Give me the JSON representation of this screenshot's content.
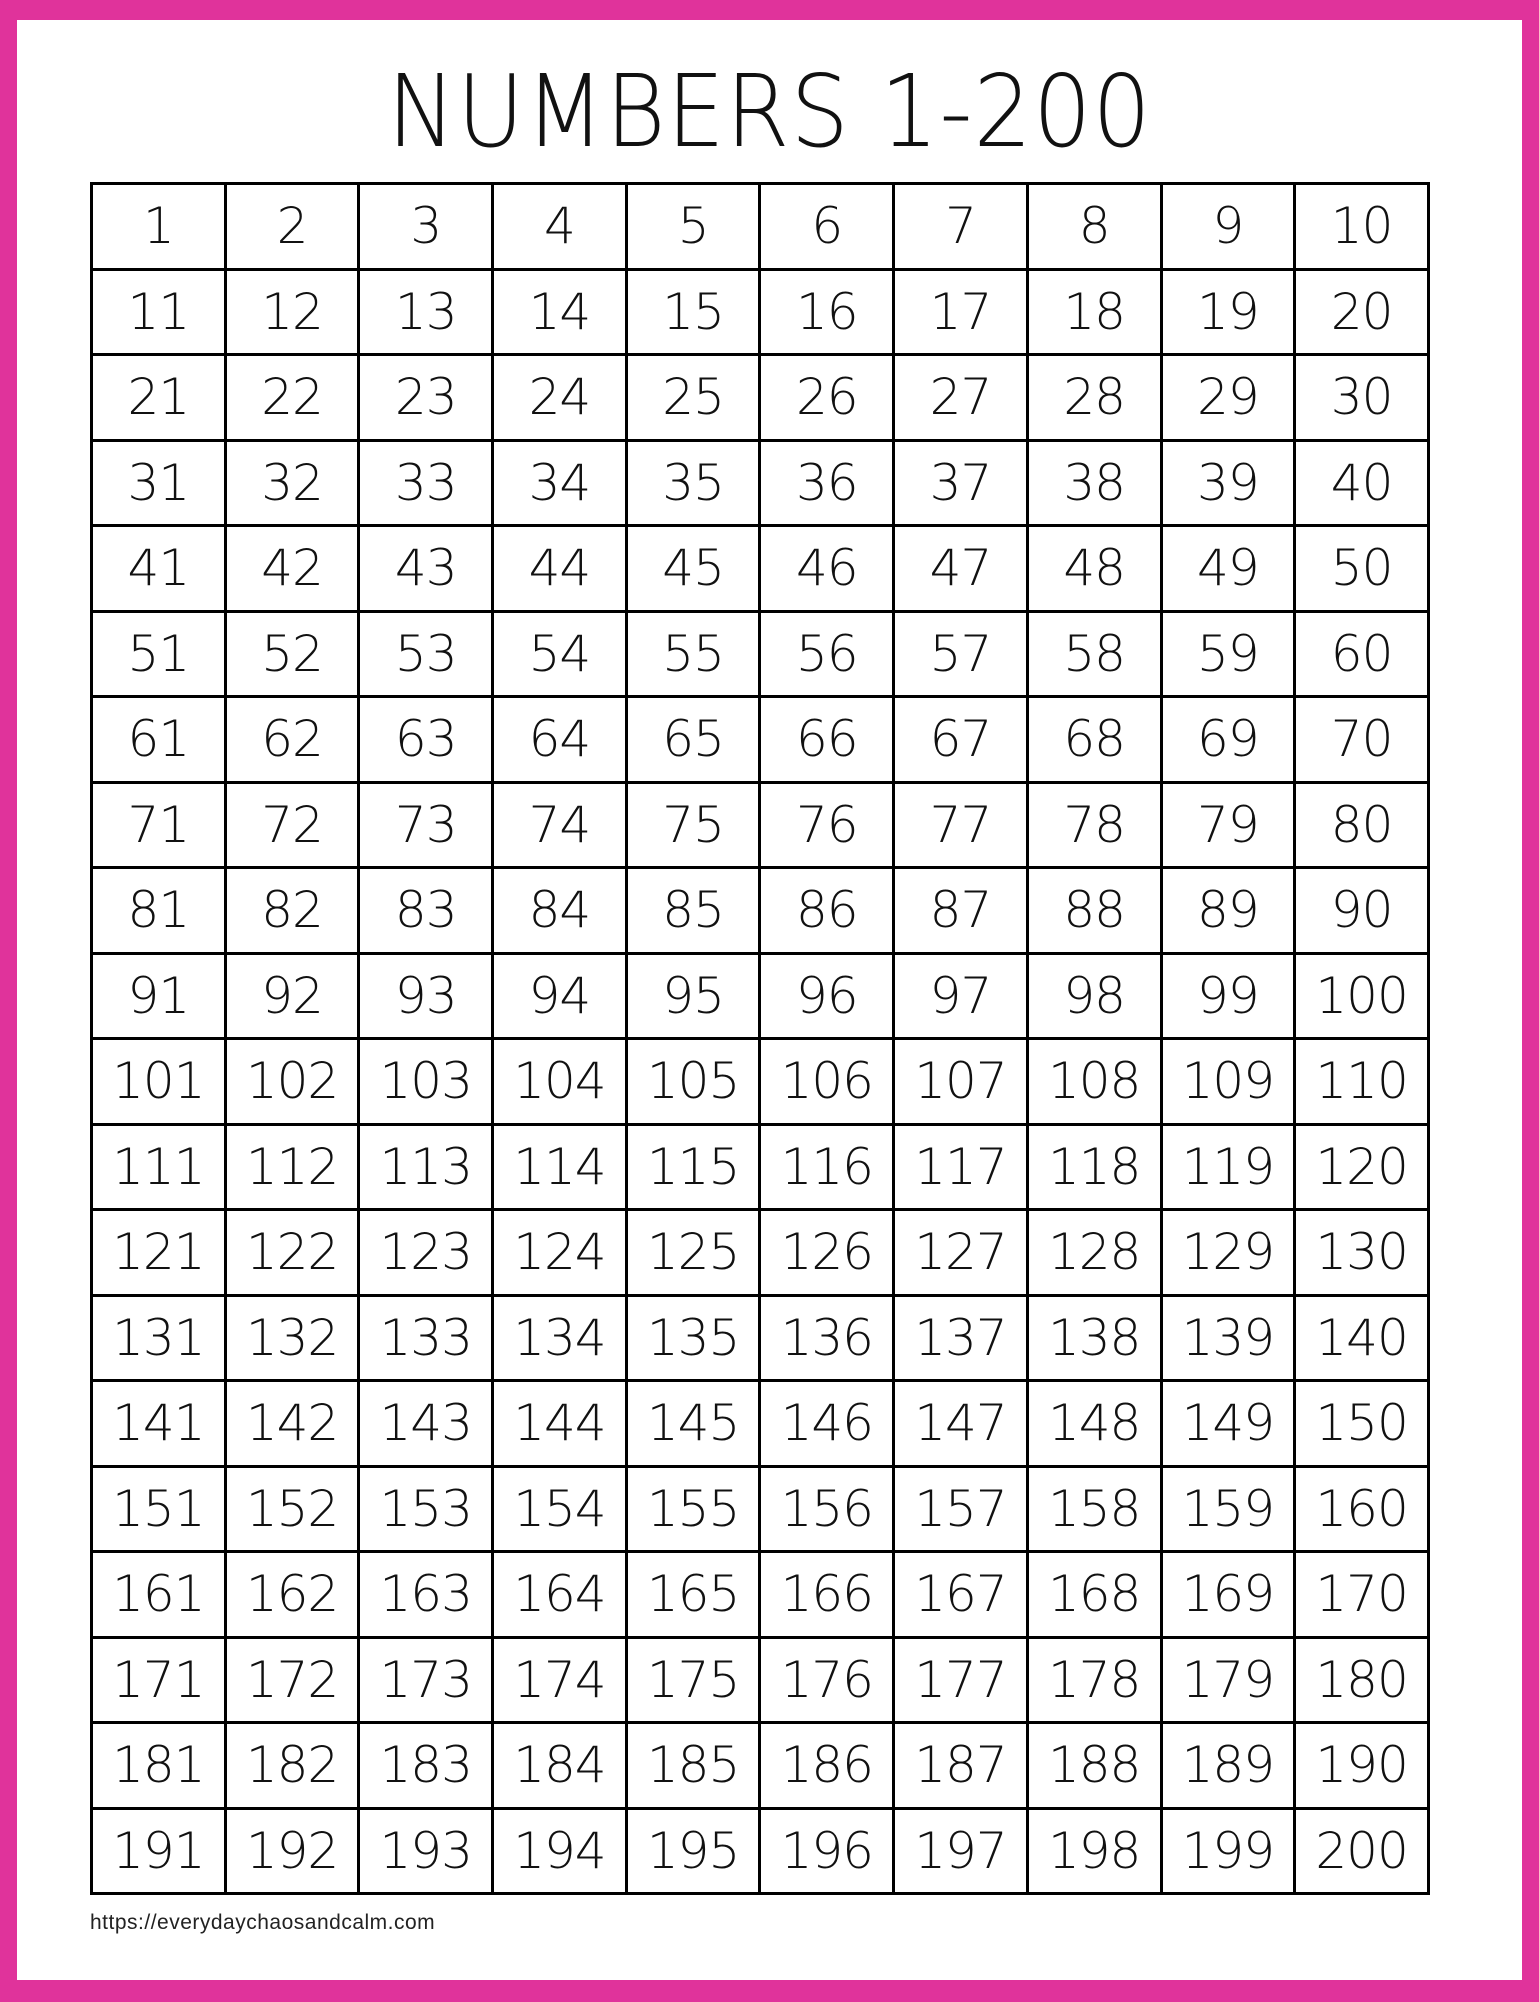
{
  "title": "NUMBERS 1-200",
  "footer_url": "https://everydaychaosandcalm.com",
  "colors": {
    "border": "#e0339b",
    "grid": "#000000"
  },
  "grid": {
    "columns": 10,
    "rows": [
      [
        "1",
        "2",
        "3",
        "4",
        "5",
        "6",
        "7",
        "8",
        "9",
        "10"
      ],
      [
        "11",
        "12",
        "13",
        "14",
        "15",
        "16",
        "17",
        "18",
        "19",
        "20"
      ],
      [
        "21",
        "22",
        "23",
        "24",
        "25",
        "26",
        "27",
        "28",
        "29",
        "30"
      ],
      [
        "31",
        "32",
        "33",
        "34",
        "35",
        "36",
        "37",
        "38",
        "39",
        "40"
      ],
      [
        "41",
        "42",
        "43",
        "44",
        "45",
        "46",
        "47",
        "48",
        "49",
        "50"
      ],
      [
        "51",
        "52",
        "53",
        "54",
        "55",
        "56",
        "57",
        "58",
        "59",
        "60"
      ],
      [
        "61",
        "62",
        "63",
        "64",
        "65",
        "66",
        "67",
        "68",
        "69",
        "70"
      ],
      [
        "71",
        "72",
        "73",
        "74",
        "75",
        "76",
        "77",
        "78",
        "79",
        "80"
      ],
      [
        "81",
        "82",
        "83",
        "84",
        "85",
        "86",
        "87",
        "88",
        "89",
        "90"
      ],
      [
        "91",
        "92",
        "93",
        "94",
        "95",
        "96",
        "97",
        "98",
        "99",
        "100"
      ],
      [
        "101",
        "102",
        "103",
        "104",
        "105",
        "106",
        "107",
        "108",
        "109",
        "110"
      ],
      [
        "111",
        "112",
        "113",
        "114",
        "115",
        "116",
        "117",
        "118",
        "119",
        "120"
      ],
      [
        "121",
        "122",
        "123",
        "124",
        "125",
        "126",
        "127",
        "128",
        "129",
        "130"
      ],
      [
        "131",
        "132",
        "133",
        "134",
        "135",
        "136",
        "137",
        "138",
        "139",
        "140"
      ],
      [
        "141",
        "142",
        "143",
        "144",
        "145",
        "146",
        "147",
        "148",
        "149",
        "150"
      ],
      [
        "151",
        "152",
        "153",
        "154",
        "155",
        "156",
        "157",
        "158",
        "159",
        "160"
      ],
      [
        "161",
        "162",
        "163",
        "164",
        "165",
        "166",
        "167",
        "168",
        "169",
        "170"
      ],
      [
        "171",
        "172",
        "173",
        "174",
        "175",
        "176",
        "177",
        "178",
        "179",
        "180"
      ],
      [
        "181",
        "182",
        "183",
        "184",
        "185",
        "186",
        "187",
        "188",
        "189",
        "190"
      ],
      [
        "191",
        "192",
        "193",
        "194",
        "195",
        "196",
        "197",
        "198",
        "199",
        "200"
      ]
    ]
  }
}
